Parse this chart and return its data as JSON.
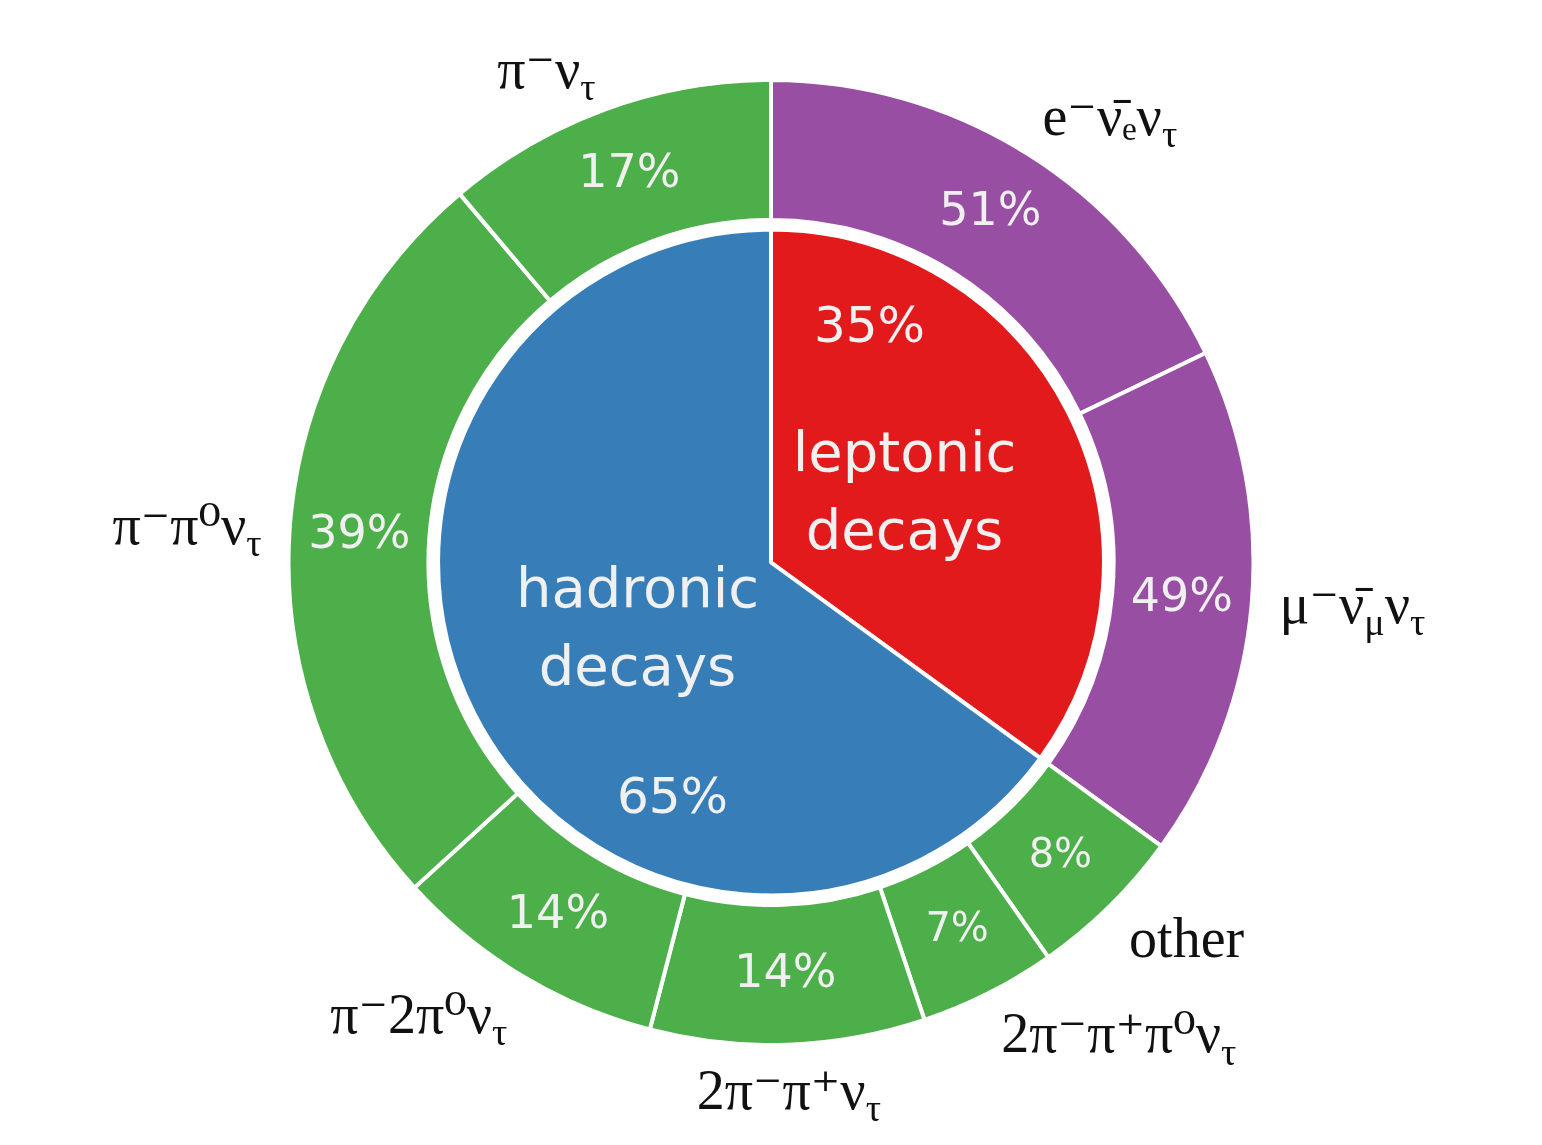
{
  "chart_data": [
    {
      "type": "pie",
      "categories": [
        "leptonic decays",
        "hadronic decays"
      ],
      "values": [
        35,
        65
      ],
      "colors": [
        "#e31a1c",
        "#377eb8"
      ],
      "value_labels": [
        "35%",
        "65%"
      ],
      "legend": false
    },
    {
      "type": "donut",
      "categories": [
        "e⁻ν̄ₑν$_{τ}$",
        "μ⁻ν̄$_{μ}$ν$_{τ}$"
      ],
      "values": [
        51,
        49
      ],
      "colors": [
        "#984ea3",
        "#984ea3"
      ],
      "value_labels": [
        "51%",
        "49%"
      ],
      "legend": false
    },
    {
      "type": "donut",
      "categories": [
        "other",
        "2π⁻π⁺π⁰ν$_{τ}$",
        "2π⁻π⁺ν$_{τ}$",
        "π⁻2π⁰ν$_{τ}$",
        "π⁻π⁰ν$_{τ}$",
        "π⁻ν$_{τ}$"
      ],
      "values": [
        8,
        7,
        14,
        14,
        39,
        17
      ],
      "colors": [
        "#4daf4a",
        "#4daf4a",
        "#4daf4a",
        "#4daf4a",
        "#4daf4a",
        "#4daf4a"
      ],
      "value_labels": [
        "8%",
        "7%",
        "14%",
        "14%",
        "39%",
        "17%"
      ],
      "legend": false
    }
  ]
}
